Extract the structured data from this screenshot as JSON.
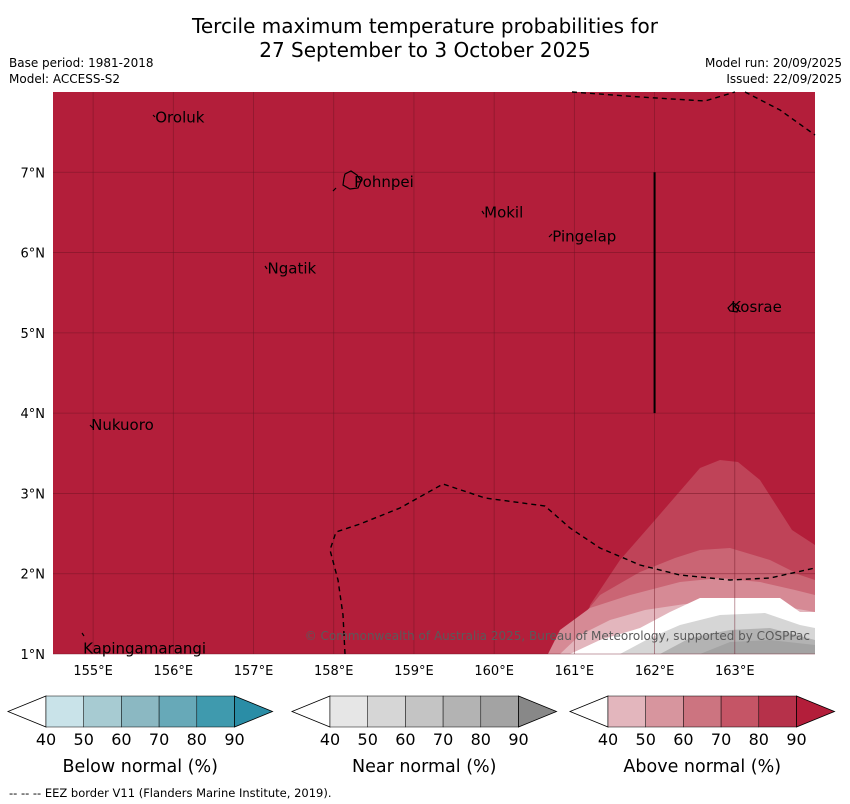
{
  "header": {
    "title_line1": "Tercile maximum temperature probabilities for",
    "title_line2": "27 September to 3 October 2025",
    "base_period": "Base period: 1981-2018",
    "model": "Model: ACCESS-S2",
    "model_run": "Model run: 20/09/2025",
    "issued": "Issued: 22/09/2025"
  },
  "map": {
    "lon_range": [
      154.5,
      164.0
    ],
    "lat_range": [
      1.0,
      8.0
    ],
    "background_color": "#b31e3a",
    "lon_ticks": [
      {
        "value": 155,
        "label": "155°E"
      },
      {
        "value": 156,
        "label": "156°E"
      },
      {
        "value": 157,
        "label": "157°E"
      },
      {
        "value": 158,
        "label": "158°E"
      },
      {
        "value": 159,
        "label": "159°E"
      },
      {
        "value": 160,
        "label": "160°E"
      },
      {
        "value": 161,
        "label": "161°E"
      },
      {
        "value": 162,
        "label": "162°E"
      },
      {
        "value": 163,
        "label": "163°E"
      }
    ],
    "lat_ticks": [
      {
        "value": 1,
        "label": "1°N"
      },
      {
        "value": 2,
        "label": "2°N"
      },
      {
        "value": 3,
        "label": "3°N"
      },
      {
        "value": 4,
        "label": "4°N"
      },
      {
        "value": 5,
        "label": "5°N"
      },
      {
        "value": 6,
        "label": "6°N"
      },
      {
        "value": 7,
        "label": "7°N"
      }
    ],
    "places": [
      {
        "name": "Oroluk",
        "lon": 155.75,
        "lat": 7.68
      },
      {
        "name": "Pohnpei",
        "lon": 158.23,
        "lat": 6.88
      },
      {
        "name": "Mokil",
        "lon": 159.85,
        "lat": 6.5
      },
      {
        "name": "Pingelap",
        "lon": 160.7,
        "lat": 6.2
      },
      {
        "name": "Ngatik",
        "lon": 157.15,
        "lat": 5.8
      },
      {
        "name": "Kosrae",
        "lon": 162.93,
        "lat": 5.32
      },
      {
        "name": "Nukuoro",
        "lon": 154.95,
        "lat": 3.85
      },
      {
        "name": "Kapingamarangi",
        "lon": 154.85,
        "lat": 1.07
      }
    ],
    "divider_line": {
      "lon": 162.0,
      "lat_from": 4.0,
      "lat_to": 7.0
    },
    "copyright": "© Commonwealth of Australia 2025, Bureau of Meteorology, supported by COSPPac"
  },
  "colorbars": [
    {
      "label": "Below normal (%)",
      "ticks": [
        "40",
        "50",
        "60",
        "70",
        "80",
        "90"
      ],
      "colors": [
        "#ffffff",
        "#c9e3e9",
        "#a7cbd2",
        "#8bb8c2",
        "#67a9b8",
        "#3f9aae",
        "#2a8da6"
      ]
    },
    {
      "label": "Near normal (%)",
      "ticks": [
        "40",
        "50",
        "60",
        "70",
        "80",
        "90"
      ],
      "colors": [
        "#ffffff",
        "#e6e6e6",
        "#d6d6d6",
        "#c4c4c4",
        "#b3b3b3",
        "#a3a3a3",
        "#888888"
      ]
    },
    {
      "label": "Above normal (%)",
      "ticks": [
        "40",
        "50",
        "60",
        "70",
        "80",
        "90"
      ],
      "colors": [
        "#ffffff",
        "#e3b6bd",
        "#d7959e",
        "#cc7480",
        "#c55566",
        "#b6314a",
        "#b31e3a"
      ]
    }
  ],
  "footnote": "--  --  -- EEZ border V11 (Flanders Marine Institute, 2019)."
}
